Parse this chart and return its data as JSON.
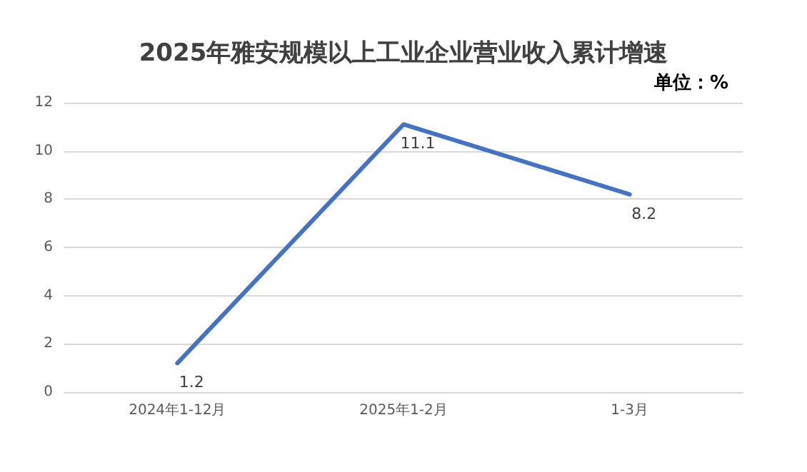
{
  "chart_data": {
    "type": "line",
    "title": "2025年雅安规模以上工业企业营业收入累计增速",
    "annotations": [
      "单位：%"
    ],
    "categories": [
      "2024年1-12月",
      "2025年1-2月",
      "1-3月"
    ],
    "series": [
      {
        "color": "#4472c4",
        "values": [
          1.2,
          11.1,
          8.2
        ]
      }
    ],
    "ylim": [
      0,
      12
    ],
    "yticks": [
      0,
      2,
      4,
      6,
      8,
      10,
      12
    ],
    "grid": "y",
    "data_labels": true,
    "marker": "none",
    "line_style": "solid"
  }
}
